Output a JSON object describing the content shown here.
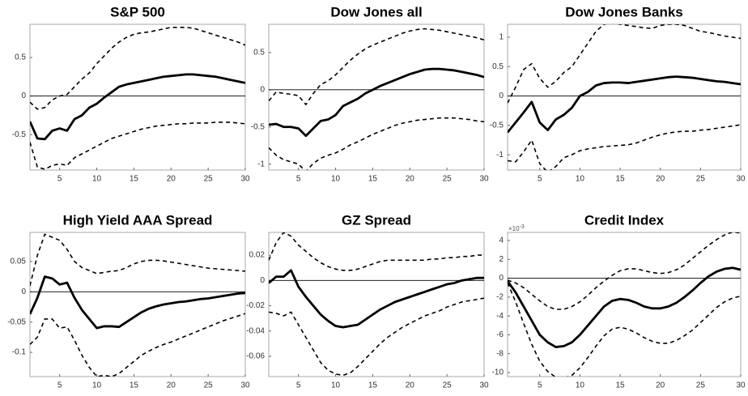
{
  "chart_data": [
    {
      "type": "line",
      "title": "S&P 500",
      "x": [
        1,
        2,
        3,
        4,
        5,
        6,
        7,
        8,
        9,
        10,
        11,
        12,
        13,
        14,
        15,
        16,
        17,
        18,
        19,
        20,
        21,
        22,
        23,
        24,
        25,
        26,
        27,
        28,
        29,
        30
      ],
      "xlim": [
        1,
        30
      ],
      "xticks": [
        5,
        10,
        15,
        20,
        25,
        30
      ],
      "ylim": [
        -0.96,
        0.93
      ],
      "yticks": [
        -0.5,
        0,
        0.5
      ],
      "zero_line": true,
      "series": [
        {
          "color": "#000000",
          "dashed": false,
          "values": [
            -0.33,
            -0.55,
            -0.56,
            -0.45,
            -0.42,
            -0.45,
            -0.3,
            -0.25,
            -0.15,
            -0.1,
            -0.02,
            0.05,
            0.12,
            0.15,
            0.17,
            0.19,
            0.21,
            0.23,
            0.25,
            0.26,
            0.27,
            0.28,
            0.28,
            0.27,
            0.26,
            0.25,
            0.23,
            0.21,
            0.19,
            0.17
          ]
        },
        {
          "color": "#000000",
          "dashed": true,
          "values": [
            -0.08,
            -0.17,
            -0.15,
            -0.05,
            0.0,
            0.02,
            0.12,
            0.22,
            0.3,
            0.42,
            0.52,
            0.62,
            0.7,
            0.76,
            0.8,
            0.82,
            0.83,
            0.85,
            0.87,
            0.89,
            0.89,
            0.89,
            0.88,
            0.85,
            0.82,
            0.79,
            0.76,
            0.73,
            0.7,
            0.66
          ]
        },
        {
          "color": "#000000",
          "dashed": true,
          "values": [
            -0.6,
            -0.92,
            -0.95,
            -0.9,
            -0.88,
            -0.9,
            -0.8,
            -0.75,
            -0.7,
            -0.65,
            -0.6,
            -0.55,
            -0.52,
            -0.49,
            -0.46,
            -0.43,
            -0.41,
            -0.39,
            -0.38,
            -0.37,
            -0.36,
            -0.36,
            -0.35,
            -0.35,
            -0.35,
            -0.34,
            -0.34,
            -0.34,
            -0.35,
            -0.36
          ]
        }
      ]
    },
    {
      "type": "line",
      "title": "Dow Jones all",
      "x": [
        1,
        2,
        3,
        4,
        5,
        6,
        7,
        8,
        9,
        10,
        11,
        12,
        13,
        14,
        15,
        16,
        17,
        18,
        19,
        20,
        21,
        22,
        23,
        24,
        25,
        26,
        27,
        28,
        29,
        30
      ],
      "xlim": [
        1,
        30
      ],
      "xticks": [
        5,
        10,
        15,
        20,
        25,
        30
      ],
      "ylim": [
        -1.08,
        0.88
      ],
      "yticks": [
        -1,
        -0.5,
        0,
        0.5
      ],
      "zero_line": true,
      "series": [
        {
          "color": "#000000",
          "dashed": false,
          "values": [
            -0.47,
            -0.46,
            -0.5,
            -0.5,
            -0.52,
            -0.62,
            -0.52,
            -0.42,
            -0.4,
            -0.34,
            -0.22,
            -0.17,
            -0.12,
            -0.05,
            0.0,
            0.05,
            0.09,
            0.13,
            0.17,
            0.21,
            0.24,
            0.27,
            0.28,
            0.28,
            0.27,
            0.26,
            0.24,
            0.22,
            0.2,
            0.17
          ]
        },
        {
          "color": "#000000",
          "dashed": true,
          "values": [
            -0.15,
            -0.03,
            -0.05,
            -0.06,
            -0.08,
            -0.2,
            -0.05,
            0.07,
            0.12,
            0.2,
            0.3,
            0.4,
            0.48,
            0.55,
            0.6,
            0.64,
            0.68,
            0.72,
            0.76,
            0.79,
            0.81,
            0.82,
            0.81,
            0.8,
            0.78,
            0.76,
            0.74,
            0.72,
            0.7,
            0.67
          ]
        },
        {
          "color": "#000000",
          "dashed": true,
          "values": [
            -0.78,
            -0.88,
            -0.94,
            -0.97,
            -1.0,
            -1.1,
            -0.99,
            -0.92,
            -0.88,
            -0.85,
            -0.8,
            -0.74,
            -0.7,
            -0.65,
            -0.6,
            -0.56,
            -0.52,
            -0.48,
            -0.45,
            -0.43,
            -0.41,
            -0.4,
            -0.39,
            -0.38,
            -0.38,
            -0.38,
            -0.39,
            -0.4,
            -0.42,
            -0.43
          ]
        }
      ]
    },
    {
      "type": "line",
      "title": "Dow Jones Banks",
      "x": [
        1,
        2,
        3,
        4,
        5,
        6,
        7,
        8,
        9,
        10,
        11,
        12,
        13,
        14,
        15,
        16,
        17,
        18,
        19,
        20,
        21,
        22,
        23,
        24,
        25,
        26,
        27,
        28,
        29,
        30
      ],
      "xlim": [
        1,
        30
      ],
      "xticks": [
        5,
        10,
        15,
        20,
        25,
        30
      ],
      "ylim": [
        -1.26,
        1.22
      ],
      "yticks": [
        -1,
        -0.5,
        0,
        0.5,
        1
      ],
      "zero_line": true,
      "series": [
        {
          "color": "#000000",
          "dashed": false,
          "values": [
            -0.62,
            -0.45,
            -0.28,
            -0.1,
            -0.45,
            -0.58,
            -0.4,
            -0.32,
            -0.2,
            0.0,
            0.07,
            0.18,
            0.22,
            0.23,
            0.23,
            0.22,
            0.24,
            0.26,
            0.28,
            0.3,
            0.32,
            0.33,
            0.32,
            0.31,
            0.29,
            0.27,
            0.25,
            0.24,
            0.22,
            0.2
          ]
        },
        {
          "color": "#000000",
          "dashed": true,
          "values": [
            -0.12,
            0.15,
            0.45,
            0.55,
            0.3,
            0.15,
            0.25,
            0.4,
            0.5,
            0.7,
            0.9,
            1.1,
            1.22,
            1.25,
            1.22,
            1.2,
            1.18,
            1.16,
            1.15,
            1.2,
            1.22,
            1.22,
            1.2,
            1.15,
            1.1,
            1.08,
            1.05,
            1.02,
            1.0,
            0.98
          ]
        },
        {
          "color": "#000000",
          "dashed": true,
          "values": [
            -1.1,
            -1.12,
            -0.95,
            -0.75,
            -1.15,
            -1.3,
            -1.2,
            -1.05,
            -1.0,
            -0.93,
            -0.9,
            -0.88,
            -0.86,
            -0.85,
            -0.84,
            -0.83,
            -0.8,
            -0.75,
            -0.7,
            -0.66,
            -0.63,
            -0.61,
            -0.6,
            -0.6,
            -0.58,
            -0.57,
            -0.55,
            -0.53,
            -0.51,
            -0.49
          ]
        }
      ]
    },
    {
      "type": "line",
      "title": "High Yield AAA Spread",
      "x": [
        1,
        2,
        3,
        4,
        5,
        6,
        7,
        8,
        9,
        10,
        11,
        12,
        13,
        14,
        15,
        16,
        17,
        18,
        19,
        20,
        21,
        22,
        23,
        24,
        25,
        26,
        27,
        28,
        29,
        30
      ],
      "xlim": [
        1,
        30
      ],
      "xticks": [
        5,
        10,
        15,
        20,
        25,
        30
      ],
      "ylim": [
        -0.14,
        0.098
      ],
      "yticks": [
        -0.1,
        -0.05,
        0,
        0.05
      ],
      "zero_line": true,
      "series": [
        {
          "color": "#000000",
          "dashed": false,
          "values": [
            -0.037,
            -0.01,
            0.025,
            0.022,
            0.012,
            0.015,
            -0.01,
            -0.03,
            -0.045,
            -0.06,
            -0.057,
            -0.057,
            -0.058,
            -0.05,
            -0.042,
            -0.034,
            -0.028,
            -0.024,
            -0.021,
            -0.019,
            -0.017,
            -0.016,
            -0.014,
            -0.012,
            -0.011,
            -0.009,
            -0.007,
            -0.005,
            -0.003,
            -0.002
          ]
        },
        {
          "color": "#000000",
          "dashed": true,
          "values": [
            0.01,
            0.06,
            0.095,
            0.09,
            0.085,
            0.07,
            0.05,
            0.04,
            0.035,
            0.03,
            0.032,
            0.034,
            0.035,
            0.04,
            0.046,
            0.05,
            0.052,
            0.052,
            0.051,
            0.049,
            0.047,
            0.045,
            0.043,
            0.041,
            0.039,
            0.038,
            0.037,
            0.036,
            0.035,
            0.034
          ]
        },
        {
          "color": "#000000",
          "dashed": true,
          "values": [
            -0.087,
            -0.075,
            -0.045,
            -0.045,
            -0.06,
            -0.058,
            -0.08,
            -0.105,
            -0.125,
            -0.14,
            -0.138,
            -0.14,
            -0.135,
            -0.125,
            -0.115,
            -0.105,
            -0.098,
            -0.092,
            -0.087,
            -0.083,
            -0.078,
            -0.073,
            -0.068,
            -0.063,
            -0.058,
            -0.053,
            -0.048,
            -0.044,
            -0.04,
            -0.036
          ]
        }
      ]
    },
    {
      "type": "line",
      "title": "GZ Spread",
      "x": [
        1,
        2,
        3,
        4,
        5,
        6,
        7,
        8,
        9,
        10,
        11,
        12,
        13,
        14,
        15,
        16,
        17,
        18,
        19,
        20,
        21,
        22,
        23,
        24,
        25,
        26,
        27,
        28,
        29,
        30
      ],
      "xlim": [
        1,
        30
      ],
      "xticks": [
        5,
        10,
        15,
        20,
        25,
        30
      ],
      "ylim": [
        -0.076,
        0.038
      ],
      "yticks": [
        -0.06,
        -0.04,
        -0.02,
        0,
        0.02
      ],
      "zero_line": true,
      "series": [
        {
          "color": "#000000",
          "dashed": false,
          "values": [
            -0.002,
            0.003,
            0.003,
            0.008,
            -0.005,
            -0.013,
            -0.02,
            -0.027,
            -0.032,
            -0.036,
            -0.037,
            -0.036,
            -0.035,
            -0.031,
            -0.027,
            -0.023,
            -0.02,
            -0.017,
            -0.015,
            -0.013,
            -0.011,
            -0.009,
            -0.007,
            -0.005,
            -0.003,
            -0.002,
            0.0,
            0.001,
            0.002,
            0.002
          ]
        },
        {
          "color": "#000000",
          "dashed": true,
          "values": [
            0.016,
            0.03,
            0.038,
            0.035,
            0.028,
            0.023,
            0.018,
            0.014,
            0.011,
            0.009,
            0.008,
            0.008,
            0.009,
            0.011,
            0.013,
            0.015,
            0.016,
            0.016,
            0.016,
            0.016,
            0.016,
            0.016,
            0.017,
            0.017,
            0.018,
            0.018,
            0.019,
            0.019,
            0.02,
            0.02
          ]
        },
        {
          "color": "#000000",
          "dashed": true,
          "values": [
            -0.025,
            -0.026,
            -0.028,
            -0.025,
            -0.035,
            -0.045,
            -0.055,
            -0.065,
            -0.071,
            -0.074,
            -0.075,
            -0.073,
            -0.068,
            -0.062,
            -0.056,
            -0.05,
            -0.045,
            -0.041,
            -0.037,
            -0.034,
            -0.031,
            -0.028,
            -0.026,
            -0.024,
            -0.021,
            -0.019,
            -0.017,
            -0.016,
            -0.015,
            -0.014
          ]
        }
      ]
    },
    {
      "type": "line",
      "title": "Credit Index",
      "y_scale_base": "×10",
      "y_scale_exponent": "-3",
      "x": [
        1,
        2,
        3,
        4,
        5,
        6,
        7,
        8,
        9,
        10,
        11,
        12,
        13,
        14,
        15,
        16,
        17,
        18,
        19,
        20,
        21,
        22,
        23,
        24,
        25,
        26,
        27,
        28,
        29,
        30
      ],
      "xlim": [
        1,
        30
      ],
      "xticks": [
        5,
        10,
        15,
        20,
        25,
        30
      ],
      "ylim": [
        -10.43,
        4.86
      ],
      "yticks": [
        -10,
        -8,
        -6,
        -4,
        -2,
        0,
        2,
        4
      ],
      "zero_line": true,
      "series": [
        {
          "color": "#000000",
          "dashed": false,
          "values": [
            -0.3,
            -1.5,
            -3,
            -4.5,
            -6,
            -6.8,
            -7.3,
            -7.2,
            -6.8,
            -6,
            -5,
            -4,
            -3,
            -2.4,
            -2.2,
            -2.3,
            -2.6,
            -3,
            -3.2,
            -3.2,
            -3,
            -2.6,
            -2,
            -1.3,
            -0.5,
            0.2,
            0.7,
            1,
            1.1,
            0.9
          ]
        },
        {
          "color": "#000000",
          "dashed": true,
          "values": [
            -0.2,
            -0.5,
            -1,
            -1.7,
            -2.4,
            -3,
            -3.3,
            -3.3,
            -3,
            -2.5,
            -1.8,
            -1,
            -0.3,
            0.3,
            0.8,
            1,
            1,
            0.8,
            0.6,
            0.5,
            0.6,
            0.9,
            1.4,
            2.1,
            2.8,
            3.5,
            4.1,
            4.6,
            4.9,
            4.8
          ]
        },
        {
          "color": "#000000",
          "dashed": true,
          "values": [
            -0.5,
            -2.5,
            -4.8,
            -7,
            -8.8,
            -9.9,
            -10.5,
            -10.6,
            -10.3,
            -9.5,
            -8.4,
            -7.2,
            -6.1,
            -5.4,
            -5.2,
            -5.4,
            -5.8,
            -6.3,
            -6.7,
            -6.9,
            -6.9,
            -6.6,
            -6.1,
            -5.5,
            -4.7,
            -3.9,
            -3.1,
            -2.5,
            -2.1,
            -1.9
          ]
        }
      ]
    }
  ]
}
